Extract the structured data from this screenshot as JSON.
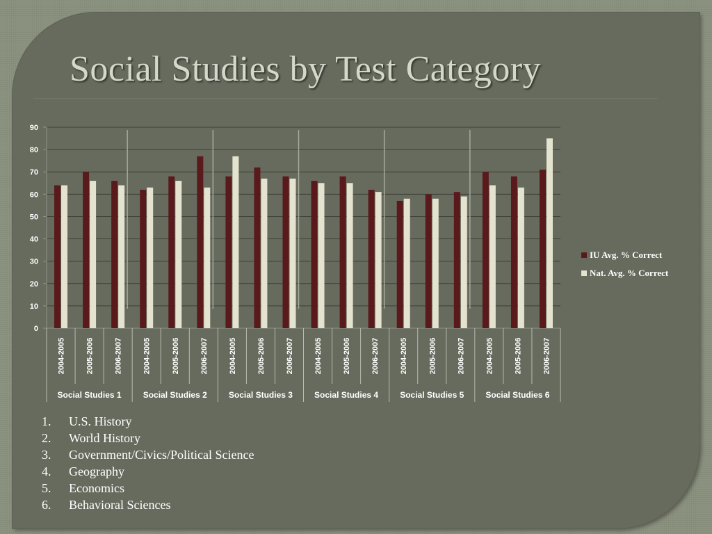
{
  "title": "Social Studies by Test Category",
  "colors": {
    "iu": "#5a1a1c",
    "nat": "#e4e3cf"
  },
  "legend": [
    {
      "label": "IU Avg. % Correct",
      "color": "#5a1a1c"
    },
    {
      "label": "Nat. Avg. % Correct",
      "color": "#e4e3cf"
    }
  ],
  "topics": [
    {
      "num": "1.",
      "text": "U.S. History"
    },
    {
      "num": "2.",
      "text": "World History"
    },
    {
      "num": "3.",
      "text": "Government/Civics/Political Science"
    },
    {
      "num": "4.",
      "text": "Geography"
    },
    {
      "num": "5.",
      "text": "Economics"
    },
    {
      "num": "6.",
      "text": "Behavioral Sciences"
    }
  ],
  "chart_data": {
    "type": "bar",
    "title": "Social Studies by Test Category",
    "xlabel": "",
    "ylabel": "",
    "ylim": [
      0,
      90
    ],
    "yticks": [
      0,
      10,
      20,
      30,
      40,
      50,
      60,
      70,
      80,
      90
    ],
    "grid": true,
    "legend_position": "right",
    "groups": [
      "Social Studies 1",
      "Social Studies 2",
      "Social Studies 3",
      "Social Studies 4",
      "Social Studies 5",
      "Social Studies 6"
    ],
    "categories": [
      "2004-2005",
      "2005-2006",
      "2006-2007",
      "2004-2005",
      "2005-2006",
      "2006-2007",
      "2004-2005",
      "2005-2006",
      "2006-2007",
      "2004-2005",
      "2005-2006",
      "2006-2007",
      "2004-2005",
      "2005-2006",
      "2006-2007",
      "2004-2005",
      "2005-2006",
      "2006-2007"
    ],
    "series": [
      {
        "name": "IU Avg. % Correct",
        "values": [
          64,
          70,
          66,
          62,
          68,
          77,
          68,
          72,
          68,
          66,
          68,
          62,
          57,
          60,
          61,
          70,
          68,
          71
        ]
      },
      {
        "name": "Nat. Avg. % Correct",
        "values": [
          64,
          66,
          64,
          63,
          66,
          63,
          77,
          67,
          67,
          65,
          65,
          61,
          58,
          58,
          59,
          64,
          63,
          85
        ]
      }
    ]
  }
}
